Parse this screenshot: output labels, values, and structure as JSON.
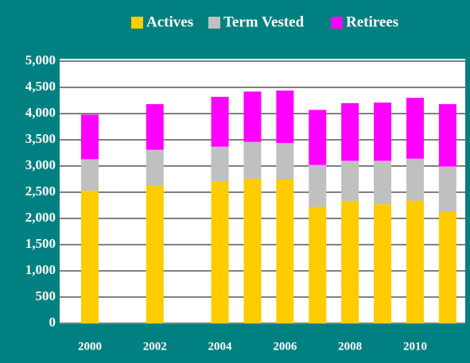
{
  "chart_data": {
    "type": "stacked_bar",
    "categories": [
      "2000",
      null,
      "2002",
      null,
      "2004",
      null,
      "2006",
      null,
      "2008",
      null,
      "2010",
      null
    ],
    "series": [
      {
        "name": "Actives",
        "color": "#ffcc00",
        "values": [
          2530,
          null,
          2620,
          null,
          2700,
          2760,
          2750,
          2220,
          2330,
          2270,
          2340,
          2130
        ]
      },
      {
        "name": "Term Vested",
        "color": "#c0c0c0",
        "values": [
          600,
          null,
          690,
          null,
          670,
          700,
          690,
          800,
          770,
          830,
          800,
          860
        ]
      },
      {
        "name": "Retirees",
        "color": "#ff00ff",
        "values": [
          850,
          null,
          870,
          null,
          950,
          960,
          1000,
          1050,
          1100,
          1110,
          1160,
          1190
        ]
      }
    ],
    "ylim": [
      0,
      5000
    ],
    "yticks": [
      0,
      500,
      {
        "value": 1000,
        "label": "1,000"
      },
      {
        "value": 1500,
        "label": "1,500"
      },
      {
        "value": 2000,
        "label": "2,000"
      },
      {
        "value": 2500,
        "label": "2,500"
      },
      {
        "value": 3000,
        "label": "3,000"
      },
      {
        "value": 3500,
        "label": "3,500"
      },
      {
        "value": 4000,
        "label": "4,000"
      },
      {
        "value": 4500,
        "label": "4,500"
      },
      {
        "value": 5000,
        "label": "5,000"
      }
    ],
    "grid": true,
    "legend": "top"
  }
}
